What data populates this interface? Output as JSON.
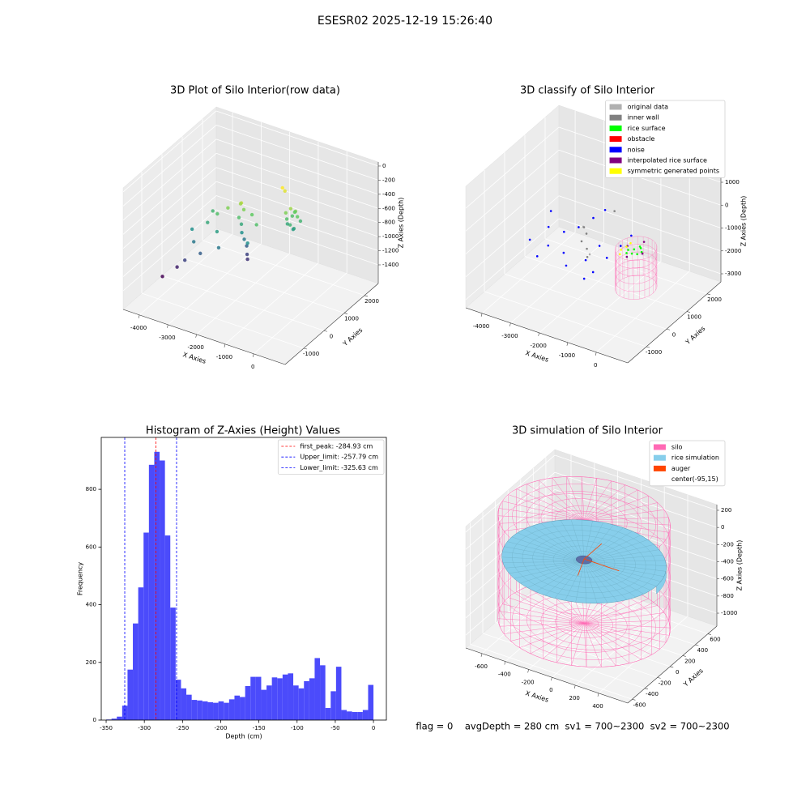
{
  "title": "ESESR02 2025-12-19 15:26:40",
  "chart_data": [
    {
      "type": "scatter3d",
      "title": "3D Plot of Silo Interior(row data)",
      "xlabel": "X Axies",
      "ylabel": "Y Axies",
      "zlabel": "Z Axies (Depth)",
      "xlim": [
        -4570,
        1100
      ],
      "ylim": [
        -1920,
        2680
      ],
      "zlim": [
        -1664,
        57
      ],
      "xticks": [
        -4000,
        -3000,
        -2000,
        -1000,
        0
      ],
      "yticks": [
        -1000,
        0,
        1000,
        2000
      ],
      "zticks": [
        0,
        -200,
        -400,
        -600,
        -800,
        -1000,
        -1200,
        -1400
      ],
      "colormap": "viridis",
      "points": {
        "x": [
          -1300,
          -1200,
          -1100,
          -1000,
          -1250,
          -1150,
          -1050,
          -1350,
          -1200,
          -1000,
          -1300,
          -1150,
          -2500,
          -2450,
          -2550,
          -2500,
          -2450,
          -2400,
          -2350,
          -2300,
          -2250,
          -2600,
          -2200,
          -1700,
          -1650,
          -3800,
          -3600,
          -3400,
          -3900,
          -3700,
          -3200,
          -3000,
          -2900,
          -3500,
          -4200,
          -3300,
          -2800,
          -2000,
          -1900
        ],
        "y": [
          1500,
          1600,
          1700,
          1650,
          1750,
          1500,
          1550,
          1650,
          1800,
          1800,
          1550,
          1650,
          1000,
          1050,
          950,
          1000,
          950,
          1000,
          1050,
          1000,
          950,
          1100,
          1100,
          1900,
          1950,
          400,
          200,
          600,
          -200,
          -100,
          800,
          500,
          900,
          1000,
          -500,
          100,
          300,
          600,
          900
        ],
        "z": [
          -700,
          -650,
          -700,
          -750,
          -800,
          -850,
          -900,
          -900,
          -750,
          -850,
          -800,
          -950,
          -600,
          -700,
          -800,
          -900,
          -1000,
          -1100,
          -1200,
          -1300,
          -1350,
          -650,
          -750,
          -500,
          -550,
          -1000,
          -1100,
          -900,
          -1400,
          -1300,
          -800,
          -950,
          -700,
          -850,
          -1500,
          -1200,
          -1100,
          -1000,
          -800
        ]
      }
    },
    {
      "type": "scatter3d",
      "title": "3D classify of Silo Interior",
      "xlabel": "X Axies",
      "ylabel": "Y Axies",
      "zlabel": "Z Axies (Depth)",
      "xlim": [
        -4570,
        1100
      ],
      "ylim": [
        -1920,
        2680
      ],
      "zlim": [
        -3354,
        1956
      ],
      "xticks": [
        -4000,
        -3000,
        -2000,
        -1000,
        0
      ],
      "yticks": [
        -1000,
        0,
        1000,
        2000
      ],
      "zticks": [
        1000,
        0,
        -1000,
        -2000,
        -3000
      ],
      "legend": "upper right",
      "series": [
        {
          "name": "original data",
          "color": "#b0b0b0",
          "x": [
            -2600,
            -2300
          ],
          "y": [
            1100,
            1000
          ],
          "z": [
            -1300,
            -2300
          ]
        },
        {
          "name": "inner wall",
          "color": "#808080",
          "x": [
            -2500,
            -2450,
            -2550,
            -2400,
            -2350,
            -2000
          ],
          "y": [
            1000,
            1050,
            950,
            1000,
            950,
            1800
          ],
          "z": [
            -1200,
            -1500,
            -1800,
            -2100,
            -2400,
            -900
          ]
        },
        {
          "name": "rice surface",
          "color": "#00ff00",
          "x": [
            -600,
            -400,
            -200,
            -400,
            -300,
            -500,
            -250,
            -550
          ],
          "y": [
            500,
            400,
            600,
            800,
            700,
            650,
            450,
            350
          ],
          "z": [
            -1000,
            -1000,
            -1000,
            -1000,
            -950,
            -1050,
            -1000,
            -1000
          ]
        },
        {
          "name": "obstacle",
          "color": "#ff0000",
          "x": [],
          "y": [],
          "z": []
        },
        {
          "name": "noise",
          "color": "#0000ff",
          "x": [
            -3900,
            -3600,
            -3400,
            -3200,
            -3000,
            -2900,
            -2700,
            -3500,
            -2300,
            -2100,
            -1900,
            -1700,
            -1500,
            -2600,
            -2400,
            -1200,
            -3800,
            -2000
          ],
          "y": [
            300,
            800,
            500,
            1000,
            700,
            1300,
            400,
            100,
            800,
            1200,
            600,
            1000,
            1400,
            1600,
            1900,
            1500,
            1200,
            300
          ],
          "z": [
            -1800,
            -1500,
            -2000,
            -1700,
            -2300,
            -1600,
            -2500,
            -2200,
            -2400,
            -2000,
            -2600,
            -2200,
            -1900,
            -1300,
            -1100,
            -1400,
            -1200,
            -2700
          ]
        },
        {
          "name": "interpolated rice surface",
          "color": "#800080",
          "x": [
            -700,
            -100,
            -400,
            -400
          ],
          "y": [
            600,
            500,
            1000,
            150
          ],
          "z": [
            -950,
            -950,
            -950,
            -950
          ]
        },
        {
          "name": "symmetric generated points",
          "color": "#ffff00",
          "x": [
            -800,
            -850,
            -750,
            -800
          ],
          "y": [
            700,
            500,
            300,
            900
          ],
          "z": [
            -1100,
            -1100,
            -1100,
            -1100
          ]
        }
      ]
    },
    {
      "type": "histogram",
      "title": "Histogram of Z-Axies (Height) Values",
      "xlabel": "Depth (cm)",
      "ylabel": "Frequency",
      "color": "#4b4bfb",
      "xlim": [
        -356.4,
        16.9
      ],
      "ylim": [
        0,
        980
      ],
      "xticks": [
        -350,
        -300,
        -250,
        -200,
        -150,
        -100,
        -50,
        0
      ],
      "yticks": [
        0,
        200,
        400,
        600,
        800
      ],
      "bins": [
        -350,
        -343,
        -336,
        -329,
        -322,
        -315,
        -308,
        -301,
        -294,
        -287,
        -280,
        -273,
        -266,
        -259,
        -252,
        -245,
        -238,
        -231,
        -224,
        -217,
        -210,
        -203,
        -196,
        -189,
        -182,
        -175,
        -168,
        -161,
        -154,
        -147,
        -140,
        -133,
        -126,
        -119,
        -112,
        -105,
        -98,
        -91,
        -84,
        -77,
        -70,
        -63,
        -56,
        -49,
        -42,
        -35,
        -28,
        -21,
        -14,
        -7,
        0
      ],
      "values": [
        2,
        5,
        12,
        50,
        175,
        335,
        460,
        650,
        885,
        930,
        900,
        640,
        390,
        140,
        110,
        88,
        70,
        68,
        65,
        62,
        60,
        65,
        60,
        72,
        85,
        80,
        118,
        150,
        150,
        105,
        120,
        148,
        145,
        158,
        162,
        120,
        110,
        135,
        145,
        215,
        190,
        42,
        100,
        185,
        35,
        30,
        28,
        28,
        35,
        122
      ],
      "legend": "upper right",
      "vlines": [
        {
          "value": -284.93,
          "label": "first_peak: -284.93 cm",
          "color": "#ff0000"
        },
        {
          "value": -257.79,
          "label": "Upper_limit: -257.79 cm",
          "color": "#0000ff"
        },
        {
          "value": -325.63,
          "label": "Lower_limit: -325.63 cm",
          "color": "#0000ff"
        }
      ]
    },
    {
      "type": "surface3d",
      "title": "3D simulation of Silo Interior",
      "xlabel": "X Axies",
      "ylabel": "Y Axies",
      "zlabel": "Z Axies (Depth)",
      "xlim": [
        -739,
        650
      ],
      "ylim": [
        -670,
        742
      ],
      "zlim": [
        -1151,
        266
      ],
      "xticks": [
        -600,
        -400,
        -200,
        0,
        200,
        400
      ],
      "yticks": [
        -600,
        -400,
        -200,
        0,
        200,
        400,
        600
      ],
      "zticks": [
        200,
        0,
        -200,
        -400,
        -600,
        -800,
        -1000
      ],
      "legend": "upper right",
      "series": [
        {
          "name": "silo",
          "color": "#ff69b4"
        },
        {
          "name": "rice simulation",
          "color": "#87ceeb"
        },
        {
          "name": "auger",
          "color": "#ff4500"
        },
        {
          "name": "center(-95,15)",
          "color": "#ffffff"
        }
      ]
    }
  ],
  "footer": "flag = 0    avgDepth = 280 cm  sv1 = 700~2300  sv2 = 700~2300"
}
